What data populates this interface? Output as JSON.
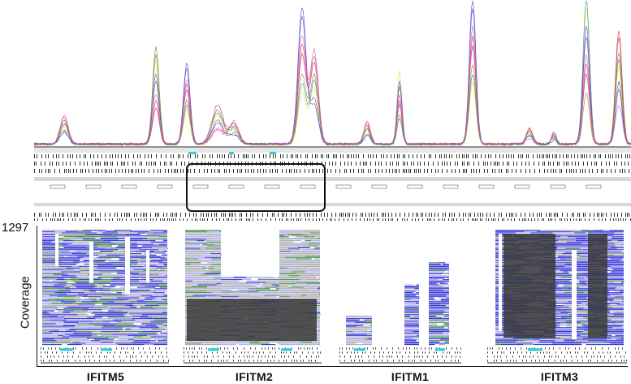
{
  "coverage_axis": {
    "max_value": "1297",
    "title": "Coverage"
  },
  "genes": [
    {
      "name": "IFITM5"
    },
    {
      "name": "IFITM2"
    },
    {
      "name": "IFITM1"
    },
    {
      "name": "IFITM3"
    }
  ],
  "colors": {
    "read_blue": "#2a2ad6",
    "read_green": "#3c8c3c",
    "read_lavender": "#b3acf0",
    "read_gray": "#a8a8a8",
    "dark_panel": "#3a3a3a",
    "highlight_cyan": "#28d0d8",
    "peak_yellow": "#f2e12a",
    "peak_magenta": "#c0257a"
  },
  "callout": "rounded-rectangle-highlight"
}
